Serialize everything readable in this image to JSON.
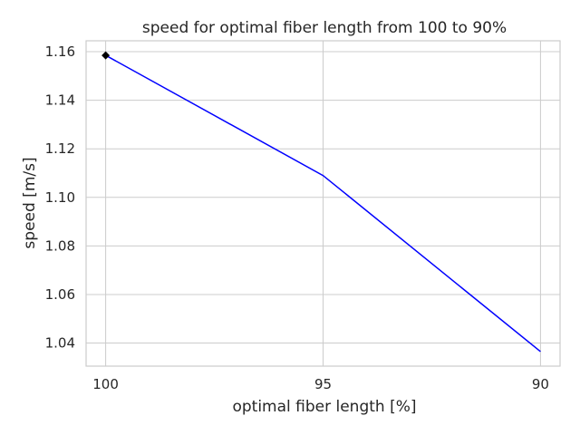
{
  "chart_data": {
    "type": "line",
    "title": "speed for optimal fiber length from 100 to 90%",
    "xlabel": "optimal fiber length [%]",
    "ylabel": "speed [m/s]",
    "x_inverted": true,
    "xlim": [
      100.45,
      89.55
    ],
    "ylim": [
      1.0305,
      1.1645
    ],
    "x_ticks": [
      100,
      95,
      90
    ],
    "x_tick_labels": [
      "100",
      "95",
      "90"
    ],
    "y_ticks": [
      1.04,
      1.06,
      1.08,
      1.1,
      1.12,
      1.14,
      1.16
    ],
    "y_tick_labels": [
      "1.04",
      "1.06",
      "1.08",
      "1.10",
      "1.12",
      "1.14",
      "1.16"
    ],
    "grid": true,
    "series": [
      {
        "x": [
          100,
          95,
          90
        ],
        "values": [
          1.1585,
          1.109,
          1.0365
        ],
        "color": "#0000ff"
      }
    ],
    "highlight_point": {
      "x": 100,
      "y": 1.1585,
      "marker": "diamond",
      "color": "#000000"
    }
  }
}
